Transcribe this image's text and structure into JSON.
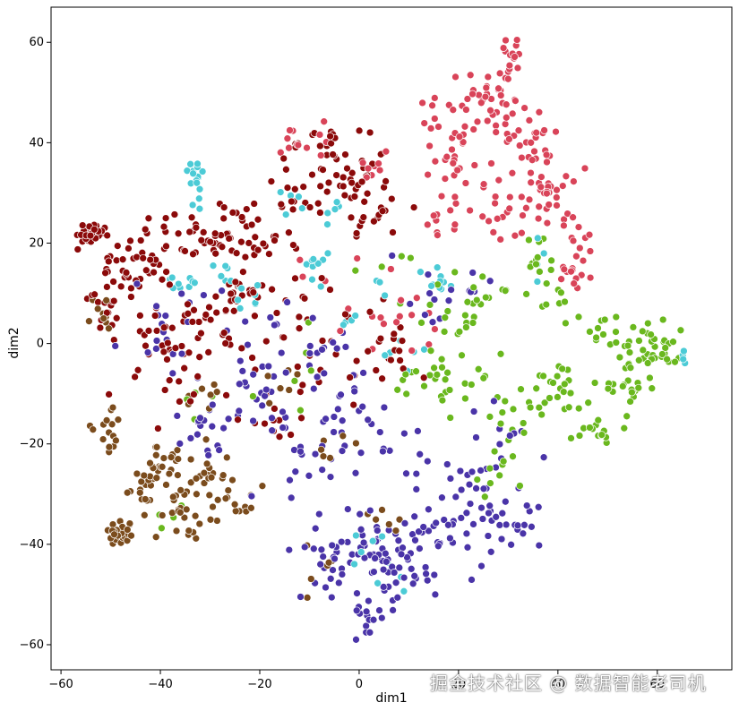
{
  "chart_data": {
    "type": "scatter",
    "title": "",
    "xlabel": "dim1",
    "ylabel": "dim2",
    "xlim": [
      -62,
      75
    ],
    "ylim": [
      -65,
      67
    ],
    "x_ticks": [
      -60,
      -40,
      -20,
      0,
      20,
      40,
      60
    ],
    "y_ticks": [
      -60,
      -40,
      -20,
      0,
      20,
      40,
      60
    ],
    "x_tick_labels": [
      "−60",
      "−40",
      "−20",
      "0",
      "20",
      "40",
      "60"
    ],
    "y_tick_labels": [
      "−60",
      "−40",
      "−20",
      "0",
      "20",
      "40",
      "60"
    ],
    "grid": false,
    "legend": "none",
    "series": [
      {
        "color": "#d94459",
        "clusters": [
          [
            31,
            57,
            3,
            3,
            14
          ],
          [
            27,
            49,
            6,
            4,
            30
          ],
          [
            20,
            44,
            6,
            4,
            25
          ],
          [
            34,
            38,
            5,
            6,
            30
          ],
          [
            38,
            30,
            4,
            6,
            25
          ],
          [
            32,
            27,
            6,
            5,
            20
          ],
          [
            20,
            35,
            5,
            4,
            20
          ],
          [
            -11,
            40,
            4,
            3,
            12
          ],
          [
            3,
            36,
            4,
            3,
            10
          ],
          [
            45,
            22,
            2,
            4,
            10
          ],
          [
            43,
            14,
            3,
            3,
            12
          ],
          [
            18,
            24,
            3,
            3,
            10
          ],
          [
            4,
            4,
            8,
            6,
            12
          ],
          [
            -8,
            12,
            12,
            6,
            8
          ]
        ]
      },
      {
        "color": "#8b0a0a",
        "clusters": [
          [
            -54,
            22,
            2,
            1.5,
            30
          ],
          [
            -49,
            13,
            4,
            5,
            30
          ],
          [
            -42,
            18,
            4,
            5,
            25
          ],
          [
            -32,
            20,
            6,
            3,
            25
          ],
          [
            -22,
            22,
            7,
            5,
            30
          ],
          [
            -13,
            30,
            6,
            6,
            25
          ],
          [
            -8,
            40,
            5,
            3,
            20
          ],
          [
            -2,
            33,
            5,
            4,
            20
          ],
          [
            2,
            26,
            5,
            5,
            20
          ],
          [
            -25,
            10,
            6,
            5,
            25
          ],
          [
            -15,
            5,
            7,
            6,
            25
          ],
          [
            -38,
            3,
            6,
            5,
            25
          ],
          [
            -29,
            -1,
            6,
            5,
            15
          ],
          [
            -6,
            -6,
            5,
            5,
            12
          ],
          [
            8,
            0,
            6,
            6,
            18
          ],
          [
            -18,
            -15,
            6,
            6,
            12
          ],
          [
            -37,
            -8,
            5,
            5,
            12
          ],
          [
            -52,
            3,
            3,
            8,
            12
          ]
        ]
      },
      {
        "color": "#4a34a8",
        "clusters": [
          [
            5,
            -45,
            7,
            6,
            60
          ],
          [
            16,
            -38,
            9,
            5,
            40
          ],
          [
            -5,
            -42,
            6,
            5,
            25
          ],
          [
            2,
            -56,
            2,
            3,
            12
          ],
          [
            23,
            -29,
            5,
            5,
            20
          ],
          [
            33,
            -35,
            4,
            5,
            15
          ],
          [
            -10,
            -23,
            7,
            6,
            20
          ],
          [
            -20,
            -10,
            6,
            6,
            20
          ],
          [
            -30,
            -18,
            5,
            6,
            18
          ],
          [
            -2,
            -13,
            6,
            6,
            18
          ],
          [
            10,
            -22,
            6,
            5,
            12
          ],
          [
            -8,
            0,
            5,
            5,
            15
          ],
          [
            14,
            10,
            5,
            5,
            10
          ],
          [
            -40,
            0,
            6,
            6,
            12
          ],
          [
            -20,
            2,
            6,
            5,
            10
          ],
          [
            -35,
            8,
            5,
            4,
            8
          ],
          [
            30,
            -18,
            6,
            6,
            10
          ],
          [
            22,
            12,
            4,
            4,
            6
          ]
        ]
      },
      {
        "color": "#6ab81e",
        "clusters": [
          [
            60,
            -1,
            5,
            3,
            35
          ],
          [
            55,
            -8,
            4,
            4,
            25
          ],
          [
            50,
            2,
            4,
            3,
            15
          ],
          [
            40,
            -9,
            4,
            4,
            20
          ],
          [
            48,
            -18,
            5,
            3,
            15
          ],
          [
            33,
            -15,
            4,
            4,
            15
          ],
          [
            20,
            5,
            6,
            5,
            20
          ],
          [
            22,
            -8,
            5,
            4,
            15
          ],
          [
            12,
            -8,
            5,
            4,
            12
          ],
          [
            36,
            18,
            3,
            3,
            12
          ],
          [
            26,
            10,
            4,
            3,
            10
          ],
          [
            40,
            8,
            3,
            3,
            8
          ],
          [
            28,
            -25,
            4,
            4,
            10
          ],
          [
            5,
            15,
            5,
            5,
            5
          ],
          [
            -12,
            -3,
            6,
            6,
            5
          ],
          [
            -30,
            -12,
            6,
            6,
            5
          ],
          [
            -38,
            -34,
            4,
            4,
            5
          ]
        ]
      },
      {
        "color": "#7b4c1d",
        "clusters": [
          [
            -48,
            -38,
            2,
            1.5,
            25
          ],
          [
            -40,
            -25,
            3,
            3,
            25
          ],
          [
            -35,
            -33,
            4,
            4,
            30
          ],
          [
            -30,
            -27,
            4,
            4,
            20
          ],
          [
            -44,
            -30,
            3,
            3,
            12
          ],
          [
            -50,
            -18,
            2,
            3,
            15
          ],
          [
            -52,
            5,
            2,
            3,
            10
          ],
          [
            -22,
            -33,
            3,
            2,
            8
          ],
          [
            -32,
            -12,
            4,
            4,
            8
          ],
          [
            -8,
            -45,
            4,
            4,
            6
          ],
          [
            -5,
            -20,
            4,
            4,
            6
          ],
          [
            5,
            -35,
            4,
            4,
            6
          ],
          [
            -15,
            -8,
            4,
            4,
            6
          ]
        ]
      },
      {
        "color": "#4ccbd6",
        "clusters": [
          [
            -33,
            34,
            1,
            2,
            12
          ],
          [
            -32,
            30,
            1,
            2,
            5
          ],
          [
            -36,
            12,
            3,
            2,
            10
          ],
          [
            -28,
            14,
            3,
            3,
            6
          ],
          [
            -9,
            15,
            2,
            3,
            10
          ],
          [
            -12,
            28,
            3,
            3,
            6
          ],
          [
            -22,
            8,
            3,
            3,
            8
          ],
          [
            -5,
            24,
            2,
            3,
            4
          ],
          [
            -2,
            5,
            1,
            1,
            4
          ],
          [
            13,
            12,
            4,
            3,
            10
          ],
          [
            8,
            -2,
            4,
            3,
            6
          ],
          [
            65,
            -2,
            2,
            2,
            4
          ],
          [
            37,
            16,
            2,
            3,
            4
          ],
          [
            2,
            -40,
            4,
            3,
            5
          ],
          [
            4,
            -45,
            3,
            3,
            4
          ],
          [
            5,
            10,
            3,
            3,
            3
          ]
        ]
      }
    ]
  },
  "watermark": "掘金技术社区 @ 数据智能老司机"
}
